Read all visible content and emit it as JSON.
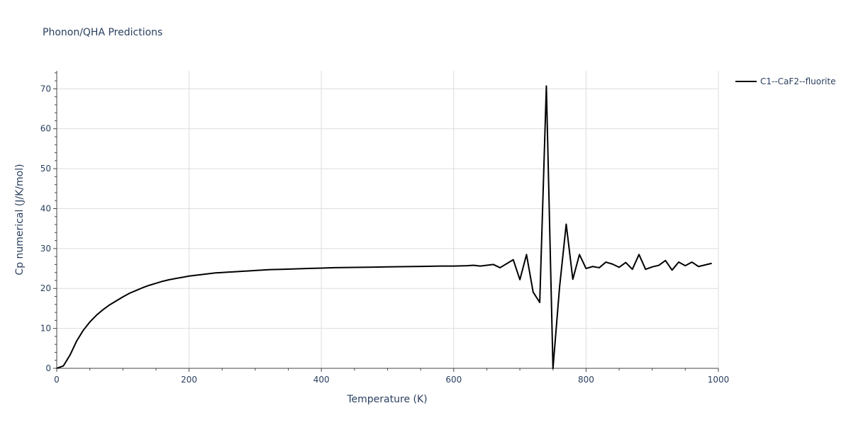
{
  "chart_data": {
    "type": "line",
    "title": "Phonon/QHA Predictions",
    "xlabel": "Temperature (K)",
    "ylabel": "Cp numerical (J/K/mol)",
    "xlim": [
      0,
      1000
    ],
    "ylim": [
      0,
      74.5
    ],
    "x_ticks": [
      0,
      200,
      400,
      600,
      800,
      1000
    ],
    "y_ticks": [
      0,
      10,
      20,
      30,
      40,
      50,
      60,
      70
    ],
    "grid": true,
    "legend_position": "top-right",
    "series": [
      {
        "name": "C1--CaF2--fluorite",
        "color": "#000000",
        "x": [
          0,
          10,
          20,
          30,
          40,
          50,
          60,
          70,
          80,
          90,
          100,
          110,
          120,
          130,
          140,
          150,
          160,
          170,
          180,
          190,
          200,
          210,
          220,
          230,
          240,
          250,
          260,
          270,
          280,
          290,
          300,
          320,
          340,
          360,
          380,
          400,
          420,
          440,
          460,
          480,
          500,
          520,
          540,
          560,
          580,
          600,
          620,
          630,
          640,
          660,
          670,
          690,
          700,
          710,
          720,
          730,
          740,
          750,
          760,
          770,
          780,
          790,
          800,
          810,
          820,
          830,
          840,
          850,
          860,
          870,
          880,
          890,
          900,
          910,
          920,
          930,
          940,
          950,
          960,
          970,
          980,
          990
        ],
        "y": [
          0,
          0.6,
          3.3,
          6.8,
          9.5,
          11.6,
          13.3,
          14.7,
          15.9,
          16.9,
          17.9,
          18.8,
          19.5,
          20.2,
          20.8,
          21.3,
          21.8,
          22.2,
          22.5,
          22.8,
          23.1,
          23.3,
          23.5,
          23.7,
          23.9,
          24.0,
          24.1,
          24.2,
          24.3,
          24.4,
          24.5,
          24.7,
          24.8,
          24.9,
          25.0,
          25.1,
          25.2,
          25.25,
          25.3,
          25.35,
          25.4,
          25.45,
          25.5,
          25.55,
          25.6,
          25.6,
          25.7,
          25.8,
          25.6,
          26.0,
          25.2,
          27.2,
          22.2,
          28.5,
          19.1,
          16.5,
          70.7,
          0,
          20.4,
          36.1,
          22.3,
          28.5,
          25.0,
          25.5,
          25.2,
          26.6,
          26.1,
          25.3,
          26.5,
          24.8,
          28.5,
          24.8,
          25.4,
          25.8,
          27.0,
          24.6,
          26.6,
          25.7,
          26.6,
          25.5,
          25.9,
          26.3
        ]
      }
    ]
  }
}
